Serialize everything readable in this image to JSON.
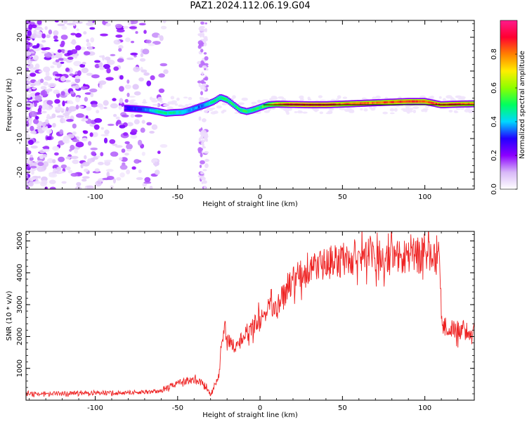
{
  "title": "PAZ1.2024.112.06.19.G04",
  "chart_data": [
    {
      "type": "heatmap",
      "title": "",
      "xlabel": "Height of straight line (km)",
      "ylabel": "Frequency (Hz)",
      "xlim": [
        -142,
        130
      ],
      "ylim": [
        -25,
        25
      ],
      "x_ticks": [
        -100,
        -50,
        0,
        50,
        100
      ],
      "y_ticks": [
        -20,
        -10,
        0,
        10,
        20
      ],
      "colorbar": {
        "label": "Normalized spectral amplitude",
        "range": [
          0,
          1
        ],
        "ticks": [
          0.0,
          0.2,
          0.4,
          0.6,
          0.8
        ],
        "colormap": [
          "#ffffff",
          "#d8b8f8",
          "#8c00ff",
          "#2200ff",
          "#00d8ff",
          "#00ff60",
          "#8cff00",
          "#ffee00",
          "#ff8000",
          "#ff0030",
          "#ff1a8c"
        ]
      },
      "ridge": [
        {
          "x": -82,
          "y": -1.0,
          "a": 0.25
        },
        {
          "x": -75,
          "y": -1.2,
          "a": 0.3
        },
        {
          "x": -68,
          "y": -1.5,
          "a": 0.35
        },
        {
          "x": -62,
          "y": -2.0,
          "a": 0.45
        },
        {
          "x": -57,
          "y": -2.5,
          "a": 0.45
        },
        {
          "x": -52,
          "y": -2.3,
          "a": 0.45
        },
        {
          "x": -47,
          "y": -2.2,
          "a": 0.45
        },
        {
          "x": -42,
          "y": -1.5,
          "a": 0.4
        },
        {
          "x": -38,
          "y": -0.8,
          "a": 0.35
        },
        {
          "x": -33,
          "y": 0.0,
          "a": 0.4
        },
        {
          "x": -28,
          "y": 1.0,
          "a": 0.5
        },
        {
          "x": -24,
          "y": 2.2,
          "a": 0.5
        },
        {
          "x": -20,
          "y": 1.5,
          "a": 0.5
        },
        {
          "x": -16,
          "y": 0.0,
          "a": 0.5
        },
        {
          "x": -12,
          "y": -1.5,
          "a": 0.5
        },
        {
          "x": -8,
          "y": -2.0,
          "a": 0.5
        },
        {
          "x": -4,
          "y": -1.5,
          "a": 0.5
        },
        {
          "x": 0,
          "y": -0.8,
          "a": 0.5
        },
        {
          "x": 5,
          "y": 0.0,
          "a": 0.6
        },
        {
          "x": 10,
          "y": 0.2,
          "a": 0.75
        },
        {
          "x": 20,
          "y": 0.1,
          "a": 0.9
        },
        {
          "x": 30,
          "y": 0.0,
          "a": 0.9
        },
        {
          "x": 40,
          "y": 0.0,
          "a": 0.9
        },
        {
          "x": 50,
          "y": 0.2,
          "a": 0.8
        },
        {
          "x": 60,
          "y": 0.4,
          "a": 0.85
        },
        {
          "x": 70,
          "y": 0.6,
          "a": 0.8
        },
        {
          "x": 80,
          "y": 0.8,
          "a": 0.85
        },
        {
          "x": 90,
          "y": 1.0,
          "a": 0.85
        },
        {
          "x": 100,
          "y": 1.0,
          "a": 0.85
        },
        {
          "x": 105,
          "y": 0.5,
          "a": 0.85
        },
        {
          "x": 110,
          "y": 0.0,
          "a": 0.85
        },
        {
          "x": 120,
          "y": 0.2,
          "a": 0.85
        },
        {
          "x": 130,
          "y": 0.3,
          "a": 0.8
        }
      ]
    },
    {
      "type": "line",
      "title": "",
      "xlabel": "Height of straight line (km)",
      "ylabel": "SNR (10 * v/v)",
      "xlim": [
        -142,
        130
      ],
      "ylim": [
        0,
        5300
      ],
      "x_ticks": [
        -100,
        -50,
        0,
        50,
        100
      ],
      "y_ticks": [
        1000,
        2000,
        3000,
        4000,
        5000
      ],
      "series": [
        {
          "color": "#ee2222",
          "x": [
            -142,
            -120,
            -100,
            -80,
            -70,
            -60,
            -55,
            -50,
            -45,
            -40,
            -35,
            -32,
            -30,
            -25,
            -22,
            -18,
            -15,
            -10,
            -5,
            0,
            5,
            10,
            15,
            20,
            25,
            30,
            35,
            40,
            50,
            60,
            70,
            80,
            90,
            100,
            105,
            109,
            110,
            111,
            115,
            120,
            125,
            130
          ],
          "values": [
            200,
            220,
            230,
            240,
            250,
            300,
            400,
            550,
            600,
            650,
            550,
            350,
            150,
            800,
            2300,
            1800,
            1700,
            2000,
            2300,
            2500,
            2800,
            3000,
            3300,
            3700,
            3950,
            4100,
            4200,
            4300,
            4400,
            4500,
            4500,
            4550,
            4550,
            4550,
            4600,
            4600,
            2800,
            2300,
            2250,
            2200,
            2200,
            2150
          ]
        }
      ]
    }
  ]
}
